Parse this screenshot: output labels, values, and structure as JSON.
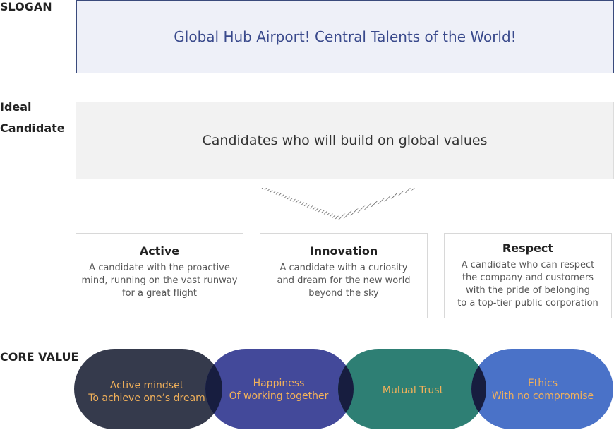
{
  "labels": {
    "slogan": "SLOGAN",
    "ideal_line1": "Ideal",
    "ideal_line2": "Candidate",
    "core_value": "CORE VALUE"
  },
  "slogan": "Global Hub Airport! Central Talents of the World!",
  "ideal": "Candidates who will build on global values",
  "cards": [
    {
      "title": "Active",
      "lines": [
        "A candidate with the proactive",
        "mind, running on the vast runway",
        "for a great flight"
      ]
    },
    {
      "title": "Innovation",
      "lines": [
        "A candidate with a curiosity",
        "and dream for the new world",
        "beyond the sky"
      ]
    },
    {
      "title": "Respect",
      "lines": [
        "A candidate who can respect",
        "the company and customers",
        "with the pride of belonging",
        "to a top-tier public corporation"
      ]
    }
  ],
  "core_values": [
    {
      "lines": [
        "Active mindset",
        "To achieve one’s dream"
      ],
      "color": "#353a4c"
    },
    {
      "lines": [
        "Happiness",
        "Of working together"
      ],
      "color": "#43499a"
    },
    {
      "lines": [
        "Mutual Trust"
      ],
      "color": "#2e7f74"
    },
    {
      "lines": [
        "Ethics",
        "With no compromise"
      ],
      "color": "#4a72c8"
    }
  ],
  "colors": {
    "core_text": "#f2b15a",
    "overlap": "#171d3f"
  }
}
